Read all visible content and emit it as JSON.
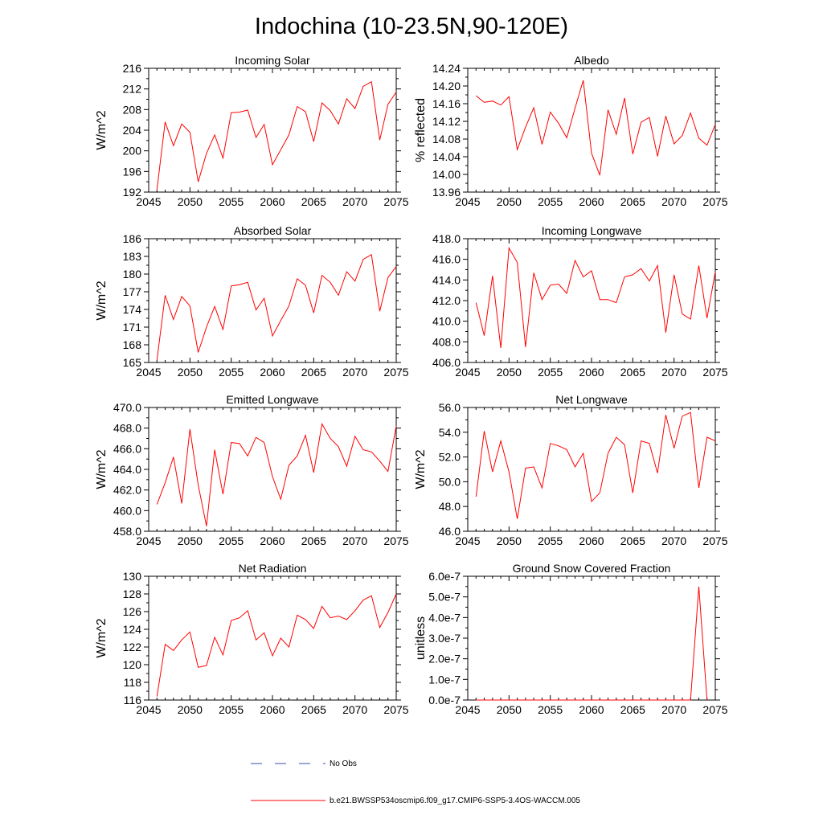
{
  "figure": {
    "title": "Indochina (10-23.5N,90-120E)",
    "legend": [
      {
        "label": "No Obs",
        "style": "dashed",
        "color": "#3a4ea8"
      },
      {
        "label": "b.e21.BWSSP534oscmip6.f09_g17.CMIP6-SSP5-3.4OS-WACCM.005",
        "style": "solid",
        "color": "#ff0000"
      }
    ]
  },
  "chart_data": [
    {
      "type": "line",
      "id": "incoming-solar",
      "title": "Incoming Solar",
      "xlabel": "",
      "ylabel": "W/m^2",
      "xlim": [
        2045,
        2075
      ],
      "ylim": [
        192,
        216
      ],
      "xticks": [
        2045,
        2050,
        2055,
        2060,
        2065,
        2070,
        2075
      ],
      "yticks": [
        192,
        196,
        200,
        204,
        208,
        212,
        216
      ],
      "ytick_labels": [
        "192",
        "196",
        "200",
        "204",
        "208",
        "212",
        "216"
      ],
      "series": [
        {
          "name": "b.e21.BWSSP534oscmip6.f09_g17.CMIP6-SSP5-3.4OS-WACCM.005",
          "color": "#ff0000",
          "x": [
            2046,
            2047,
            2048,
            2049,
            2050,
            2051,
            2052,
            2053,
            2054,
            2055,
            2056,
            2057,
            2058,
            2059,
            2060,
            2061,
            2062,
            2063,
            2064,
            2065,
            2066,
            2067,
            2068,
            2069,
            2070,
            2071,
            2072,
            2073,
            2074,
            2075
          ],
          "y": [
            192.5,
            205.6,
            201.0,
            205.2,
            203.6,
            194.0,
            199.5,
            203.1,
            198.6,
            207.4,
            207.5,
            207.9,
            202.6,
            205.1,
            197.3,
            200.2,
            203.1,
            208.6,
            207.6,
            201.8,
            209.3,
            207.8,
            205.2,
            210.1,
            208.2,
            212.5,
            213.4,
            202.1,
            209.0,
            211.4
          ]
        }
      ]
    },
    {
      "type": "line",
      "id": "albedo",
      "title": "Albedo",
      "xlabel": "",
      "ylabel": "% reflected",
      "xlim": [
        2045,
        2075
      ],
      "ylim": [
        13.96,
        14.24
      ],
      "xticks": [
        2045,
        2050,
        2055,
        2060,
        2065,
        2070,
        2075
      ],
      "yticks": [
        13.96,
        14.0,
        14.04,
        14.08,
        14.12,
        14.16,
        14.2,
        14.24
      ],
      "ytick_labels": [
        "13.96",
        "14.00",
        "14.04",
        "14.08",
        "14.12",
        "14.16",
        "14.20",
        "14.24"
      ],
      "series": [
        {
          "name": "b.e21.BWSSP534oscmip6.f09_g17.CMIP6-SSP5-3.4OS-WACCM.005",
          "color": "#ff0000",
          "x": [
            2046,
            2047,
            2048,
            2049,
            2050,
            2051,
            2052,
            2053,
            2054,
            2055,
            2056,
            2057,
            2058,
            2059,
            2060,
            2061,
            2062,
            2063,
            2064,
            2065,
            2066,
            2067,
            2068,
            2069,
            2070,
            2071,
            2072,
            2073,
            2074,
            2075
          ],
          "y": [
            14.178,
            14.163,
            14.166,
            14.157,
            14.176,
            14.056,
            14.107,
            14.151,
            14.068,
            14.141,
            14.116,
            14.083,
            14.15,
            14.213,
            14.048,
            13.998,
            14.146,
            14.091,
            14.173,
            14.046,
            14.118,
            14.129,
            14.041,
            14.132,
            14.069,
            14.088,
            14.139,
            14.082,
            14.066,
            14.113
          ]
        }
      ]
    },
    {
      "type": "line",
      "id": "absorbed-solar",
      "title": "Absorbed Solar",
      "xlabel": "",
      "ylabel": "W/m^2",
      "xlim": [
        2045,
        2075
      ],
      "ylim": [
        165,
        186
      ],
      "xticks": [
        2045,
        2050,
        2055,
        2060,
        2065,
        2070,
        2075
      ],
      "yticks": [
        165,
        168,
        171,
        174,
        177,
        180,
        183,
        186
      ],
      "ytick_labels": [
        "165",
        "168",
        "171",
        "174",
        "177",
        "180",
        "183",
        "186"
      ],
      "series": [
        {
          "name": "b.e21.BWSSP534oscmip6.f09_g17.CMIP6-SSP5-3.4OS-WACCM.005",
          "color": "#ff0000",
          "x": [
            2046,
            2047,
            2048,
            2049,
            2050,
            2051,
            2052,
            2053,
            2054,
            2055,
            2056,
            2057,
            2058,
            2059,
            2060,
            2061,
            2062,
            2063,
            2064,
            2065,
            2066,
            2067,
            2068,
            2069,
            2070,
            2071,
            2072,
            2073,
            2074,
            2075
          ],
          "y": [
            165.4,
            176.4,
            172.3,
            176.2,
            174.6,
            166.7,
            171.0,
            174.5,
            170.6,
            178.0,
            178.2,
            178.6,
            173.9,
            175.9,
            169.5,
            172.1,
            174.6,
            179.2,
            178.1,
            173.4,
            179.8,
            178.6,
            176.4,
            180.4,
            178.8,
            182.5,
            183.3,
            173.7,
            179.4,
            181.3
          ]
        }
      ]
    },
    {
      "type": "line",
      "id": "incoming-longwave",
      "title": "Incoming Longwave",
      "xlabel": "",
      "ylabel": "",
      "xlim": [
        2045,
        2075
      ],
      "ylim": [
        406,
        418
      ],
      "xticks": [
        2045,
        2050,
        2055,
        2060,
        2065,
        2070,
        2075
      ],
      "yticks": [
        406,
        408,
        410,
        412,
        414,
        416,
        418
      ],
      "ytick_labels": [
        "406.0",
        "408.0",
        "410.0",
        "412.0",
        "414.0",
        "416.0",
        "418.0"
      ],
      "series": [
        {
          "name": "b.e21.BWSSP534oscmip6.f09_g17.CMIP6-SSP5-3.4OS-WACCM.005",
          "color": "#ff0000",
          "x": [
            2046,
            2047,
            2048,
            2049,
            2050,
            2051,
            2052,
            2053,
            2054,
            2055,
            2056,
            2057,
            2058,
            2059,
            2060,
            2061,
            2062,
            2063,
            2064,
            2065,
            2066,
            2067,
            2068,
            2069,
            2070,
            2071,
            2072,
            2073,
            2074,
            2075
          ],
          "y": [
            411.8,
            408.6,
            414.4,
            407.4,
            417.1,
            415.7,
            407.5,
            414.7,
            412.1,
            413.5,
            413.6,
            412.7,
            415.9,
            414.3,
            414.9,
            412.1,
            412.1,
            411.8,
            414.3,
            414.5,
            415.1,
            413.9,
            415.4,
            408.9,
            414.5,
            410.7,
            410.2,
            415.4,
            410.3,
            414.8
          ]
        }
      ]
    },
    {
      "type": "line",
      "id": "emitted-longwave",
      "title": "Emitted Longwave",
      "xlabel": "",
      "ylabel": "W/m^2",
      "xlim": [
        2045,
        2075
      ],
      "ylim": [
        458,
        470
      ],
      "xticks": [
        2045,
        2050,
        2055,
        2060,
        2065,
        2070,
        2075
      ],
      "yticks": [
        458,
        460,
        462,
        464,
        466,
        468,
        470
      ],
      "ytick_labels": [
        "458.0",
        "460.0",
        "462.0",
        "464.0",
        "466.0",
        "468.0",
        "470.0"
      ],
      "series": [
        {
          "name": "b.e21.BWSSP534oscmip6.f09_g17.CMIP6-SSP5-3.4OS-WACCM.005",
          "color": "#ff0000",
          "x": [
            2046,
            2047,
            2048,
            2049,
            2050,
            2051,
            2052,
            2053,
            2054,
            2055,
            2056,
            2057,
            2058,
            2059,
            2060,
            2061,
            2062,
            2063,
            2064,
            2065,
            2066,
            2067,
            2068,
            2069,
            2070,
            2071,
            2072,
            2073,
            2074,
            2075
          ],
          "y": [
            460.6,
            462.7,
            465.2,
            460.7,
            467.9,
            462.5,
            458.5,
            465.9,
            461.6,
            466.6,
            466.5,
            465.3,
            467.1,
            466.6,
            463.3,
            461.1,
            464.4,
            465.3,
            467.3,
            463.7,
            468.4,
            467.0,
            466.2,
            464.3,
            467.2,
            465.9,
            465.7,
            464.8,
            463.8,
            468.2
          ]
        }
      ]
    },
    {
      "type": "line",
      "id": "net-longwave",
      "title": "Net Longwave",
      "xlabel": "",
      "ylabel": "W/m^2",
      "xlim": [
        2045,
        2075
      ],
      "ylim": [
        46,
        56
      ],
      "xticks": [
        2045,
        2050,
        2055,
        2060,
        2065,
        2070,
        2075
      ],
      "yticks": [
        46,
        48,
        50,
        52,
        54,
        56
      ],
      "ytick_labels": [
        "46.0",
        "48.0",
        "50.0",
        "52.0",
        "54.0",
        "56.0"
      ],
      "series": [
        {
          "name": "b.e21.BWSSP534oscmip6.f09_g17.CMIP6-SSP5-3.4OS-WACCM.005",
          "color": "#ff0000",
          "x": [
            2046,
            2047,
            2048,
            2049,
            2050,
            2051,
            2052,
            2053,
            2054,
            2055,
            2056,
            2057,
            2058,
            2059,
            2060,
            2061,
            2062,
            2063,
            2064,
            2065,
            2066,
            2067,
            2068,
            2069,
            2070,
            2071,
            2072,
            2073,
            2074,
            2075
          ],
          "y": [
            48.8,
            54.1,
            50.8,
            53.3,
            50.8,
            47.0,
            51.1,
            51.2,
            49.5,
            53.1,
            52.9,
            52.6,
            51.2,
            52.3,
            48.4,
            49.1,
            52.3,
            53.6,
            53.0,
            49.1,
            53.3,
            53.1,
            50.7,
            55.4,
            52.7,
            55.3,
            55.6,
            49.5,
            53.6,
            53.3
          ]
        }
      ]
    },
    {
      "type": "line",
      "id": "net-radiation",
      "title": "Net Radiation",
      "xlabel": "",
      "ylabel": "W/m^2",
      "xlim": [
        2045,
        2075
      ],
      "ylim": [
        116,
        130
      ],
      "xticks": [
        2045,
        2050,
        2055,
        2060,
        2065,
        2070,
        2075
      ],
      "yticks": [
        116,
        118,
        120,
        122,
        124,
        126,
        128,
        130
      ],
      "ytick_labels": [
        "116",
        "118",
        "120",
        "122",
        "124",
        "126",
        "128",
        "130"
      ],
      "series": [
        {
          "name": "b.e21.BWSSP534oscmip6.f09_g17.CMIP6-SSP5-3.4OS-WACCM.005",
          "color": "#ff0000",
          "x": [
            2046,
            2047,
            2048,
            2049,
            2050,
            2051,
            2052,
            2053,
            2054,
            2055,
            2056,
            2057,
            2058,
            2059,
            2060,
            2061,
            2062,
            2063,
            2064,
            2065,
            2066,
            2067,
            2068,
            2069,
            2070,
            2071,
            2072,
            2073,
            2074,
            2075
          ],
          "y": [
            116.4,
            122.3,
            121.6,
            122.8,
            123.7,
            119.7,
            119.9,
            123.1,
            121.1,
            125.0,
            125.3,
            126.1,
            122.8,
            123.6,
            121.0,
            123.0,
            122.0,
            125.6,
            125.1,
            124.1,
            126.6,
            125.3,
            125.5,
            125.1,
            126.1,
            127.3,
            127.8,
            124.2,
            125.9,
            128.0
          ]
        }
      ]
    },
    {
      "type": "line",
      "id": "ground-snow-covered-fraction",
      "title": "Ground Snow Covered Fraction",
      "xlabel": "",
      "ylabel": "unitless",
      "xlim": [
        2045,
        2075
      ],
      "ylim": [
        0,
        6e-07
      ],
      "xticks": [
        2045,
        2050,
        2055,
        2060,
        2065,
        2070,
        2075
      ],
      "yticks": [
        0,
        1e-07,
        2e-07,
        3e-07,
        4e-07,
        5e-07,
        6e-07
      ],
      "ytick_labels": [
        "0.0e-7",
        "1.0e-7",
        "2.0e-7",
        "3.0e-7",
        "4.0e-7",
        "5.0e-7",
        "6.0e-7"
      ],
      "series": [
        {
          "name": "b.e21.BWSSP534oscmip6.f09_g17.CMIP6-SSP5-3.4OS-WACCM.005",
          "color": "#ff0000",
          "x": [
            2046,
            2047,
            2048,
            2049,
            2050,
            2051,
            2052,
            2053,
            2054,
            2055,
            2056,
            2057,
            2058,
            2059,
            2060,
            2061,
            2062,
            2063,
            2064,
            2065,
            2066,
            2067,
            2068,
            2069,
            2070,
            2071,
            2072,
            2073,
            2074
          ],
          "y": [
            0,
            0,
            0,
            0,
            0,
            0,
            0,
            0,
            0,
            0,
            0,
            0,
            0,
            0,
            0,
            0,
            0,
            0,
            0,
            0,
            0,
            0,
            0,
            0,
            0,
            0,
            0,
            5.5e-07,
            0
          ]
        }
      ]
    }
  ]
}
